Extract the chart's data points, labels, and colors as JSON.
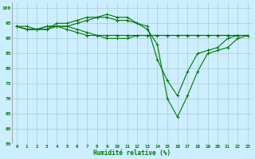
{
  "x": [
    0,
    1,
    2,
    3,
    4,
    5,
    6,
    7,
    8,
    9,
    10,
    11,
    12,
    13,
    14,
    15,
    16,
    17,
    18,
    19,
    20,
    21,
    22,
    23
  ],
  "series": [
    [
      94,
      94,
      93,
      93,
      95,
      95,
      96,
      97,
      97,
      98,
      97,
      97,
      95,
      94,
      83,
      76,
      71,
      79,
      85,
      86,
      87,
      90,
      91,
      91
    ],
    [
      94,
      93,
      93,
      93,
      94,
      94,
      95,
      96,
      97,
      97,
      96,
      96,
      95,
      93,
      88,
      70,
      64,
      71,
      79,
      85,
      86,
      87,
      90,
      91
    ],
    [
      94,
      93,
      93,
      94,
      94,
      93,
      92,
      91,
      91,
      90,
      90,
      90,
      91,
      91,
      91,
      91,
      91,
      91,
      91,
      91,
      91,
      91,
      91,
      91
    ],
    [
      94,
      93,
      93,
      94,
      94,
      94,
      93,
      92,
      91,
      91,
      91,
      91,
      91,
      91,
      91,
      91,
      91,
      91,
      91,
      91,
      91,
      91,
      91,
      91
    ]
  ],
  "line_color": "#007700",
  "marker": "+",
  "marker_size": 3,
  "marker_lw": 0.7,
  "line_width": 0.8,
  "xlabel": "Humidité relative (%)",
  "xlabel_color": "#007700",
  "background_color": "#cceeff",
  "grid_color": "#aacccc",
  "tick_color": "#007700",
  "ylim": [
    55,
    102
  ],
  "yticks": [
    55,
    60,
    65,
    70,
    75,
    80,
    85,
    90,
    95,
    100
  ],
  "xlim": [
    -0.5,
    23.5
  ],
  "xticks": [
    0,
    1,
    2,
    3,
    4,
    5,
    6,
    7,
    8,
    9,
    10,
    11,
    12,
    13,
    14,
    15,
    16,
    17,
    18,
    19,
    20,
    21,
    22,
    23
  ]
}
